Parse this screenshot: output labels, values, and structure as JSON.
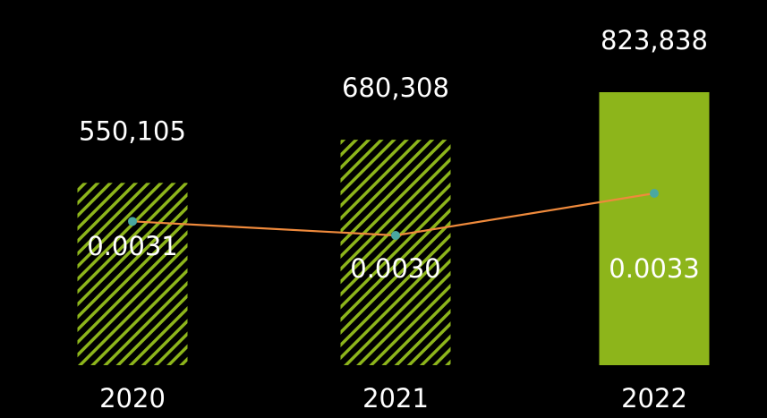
{
  "chart_data": {
    "type": "bar",
    "categories": [
      "2020",
      "2021",
      "2022"
    ],
    "series": [
      {
        "kind": "bar",
        "values": [
          550105,
          680308,
          823838
        ],
        "value_labels": [
          "550,105",
          "680,308",
          "823,838"
        ],
        "fill_styles": [
          "hatched",
          "hatched",
          "solid"
        ],
        "color": "#8db51b"
      },
      {
        "kind": "line",
        "values": [
          0.0031,
          0.003,
          0.0033
        ],
        "value_labels": [
          "0.0031",
          "0.0030",
          "0.0033"
        ],
        "line_color": "#ef8a3c",
        "marker_color": "#4aa8a0"
      }
    ],
    "grid": false,
    "legend": "none"
  },
  "colors": {
    "background": "#000000",
    "text": "#ffffff",
    "bar": "#8db51b",
    "line": "#ef8a3c",
    "marker": "#4aa8a0"
  }
}
